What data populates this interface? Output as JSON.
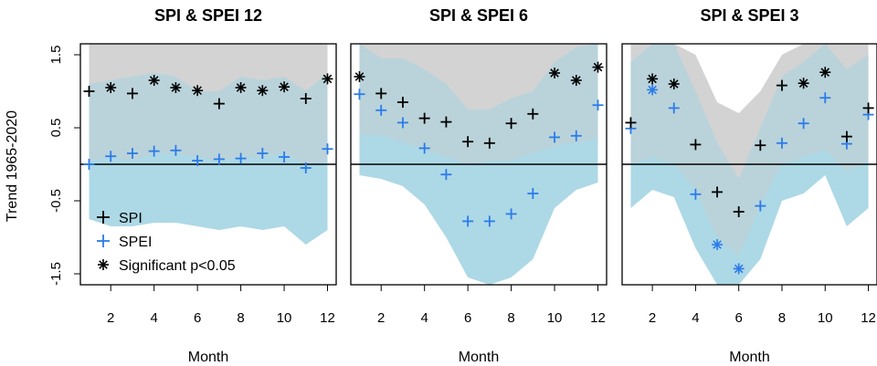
{
  "chart_data": {
    "type": "scatter",
    "ylabel": "Trend 1965-2020",
    "xlabel": "Month",
    "xlim": [
      0.6,
      12.4
    ],
    "ylim": [
      -1.65,
      1.65
    ],
    "xticks": [
      2,
      4,
      6,
      8,
      10,
      12
    ],
    "yticks": [
      1.5,
      0.5,
      -0.5,
      -1.5
    ],
    "ytick_labels": [
      "1.5",
      "0.5",
      "-0.5",
      "-1.5"
    ],
    "hline": 0,
    "legend": {
      "location": "bottom-left of first panel",
      "entries": [
        {
          "label": "SPI",
          "symbol": "+",
          "color": "#000000"
        },
        {
          "label": "SPEI",
          "symbol": "+",
          "color": "#2b7bea"
        },
        {
          "label": "Significant p<0.05",
          "symbol": "*",
          "color": "#000000"
        }
      ]
    },
    "colors": {
      "spi": "#000000",
      "spei": "#2b7bea",
      "spi_band": "#d3d3d3",
      "spei_band": "#add8e6",
      "band_overlap": "#bad3da"
    },
    "panels": [
      {
        "title": "SPI & SPEI 12",
        "months": [
          1,
          2,
          3,
          4,
          5,
          6,
          7,
          8,
          9,
          10,
          11,
          12
        ],
        "spi": [
          1.0,
          1.05,
          0.97,
          1.15,
          1.05,
          1.01,
          0.83,
          1.05,
          1.01,
          1.06,
          0.9,
          1.17
        ],
        "spi_significant": [
          false,
          true,
          false,
          true,
          true,
          true,
          false,
          true,
          true,
          true,
          false,
          true
        ],
        "spei": [
          0.0,
          0.11,
          0.15,
          0.18,
          0.19,
          0.05,
          0.07,
          0.08,
          0.15,
          0.1,
          -0.05,
          0.21
        ],
        "spei_significant": [
          false,
          false,
          false,
          false,
          false,
          false,
          false,
          false,
          false,
          false,
          false,
          false
        ],
        "spi_band_upper": [
          1.65,
          1.65,
          1.65,
          1.65,
          1.65,
          1.65,
          1.65,
          1.65,
          1.65,
          1.65,
          1.65,
          1.65
        ],
        "spi_band_lower": [
          0.05,
          0.1,
          0.05,
          0.15,
          0.15,
          0.1,
          0.05,
          0.1,
          0.1,
          0.15,
          0.0,
          0.05
        ],
        "spei_band_upper": [
          1.1,
          1.15,
          1.2,
          1.25,
          1.2,
          1.0,
          1.0,
          1.2,
          1.15,
          1.2,
          1.0,
          1.25
        ],
        "spei_band_lower": [
          -0.75,
          -0.85,
          -0.85,
          -0.8,
          -0.8,
          -0.85,
          -0.9,
          -0.85,
          -0.9,
          -0.85,
          -1.1,
          -0.9
        ]
      },
      {
        "title": "SPI & SPEI 6",
        "months": [
          1,
          2,
          3,
          4,
          5,
          6,
          7,
          8,
          9,
          10,
          11,
          12
        ],
        "spi": [
          1.2,
          0.97,
          0.85,
          0.63,
          0.58,
          0.31,
          0.29,
          0.56,
          0.69,
          1.25,
          1.15,
          1.33
        ],
        "spi_significant": [
          true,
          false,
          false,
          false,
          false,
          false,
          false,
          false,
          false,
          true,
          true,
          true
        ],
        "spei": [
          0.96,
          0.74,
          0.57,
          0.22,
          -0.14,
          -0.78,
          -0.78,
          -0.68,
          -0.4,
          0.37,
          0.39,
          0.81
        ],
        "spei_significant": [
          false,
          false,
          false,
          false,
          false,
          false,
          false,
          false,
          false,
          false,
          false,
          false
        ],
        "spi_band_upper": [
          1.65,
          1.65,
          1.65,
          1.65,
          1.65,
          1.65,
          1.65,
          1.65,
          1.65,
          1.65,
          1.65,
          1.65
        ],
        "spi_band_lower": [
          0.4,
          0.4,
          0.3,
          0.2,
          0.1,
          0.0,
          0.05,
          0.05,
          0.15,
          0.25,
          0.3,
          0.35
        ],
        "spei_band_upper": [
          1.65,
          1.45,
          1.45,
          1.3,
          1.1,
          0.75,
          0.75,
          0.9,
          1.0,
          1.4,
          1.6,
          1.65
        ],
        "spei_band_lower": [
          -0.15,
          -0.2,
          -0.3,
          -0.55,
          -1.0,
          -1.55,
          -1.65,
          -1.55,
          -1.3,
          -0.6,
          -0.35,
          -0.25
        ]
      },
      {
        "title": "SPI & SPEI 3",
        "months": [
          1,
          2,
          3,
          4,
          5,
          6,
          7,
          8,
          9,
          10,
          11,
          12
        ],
        "spi": [
          0.57,
          1.17,
          1.1,
          0.27,
          -0.38,
          -0.65,
          0.26,
          1.08,
          1.11,
          1.26,
          0.38,
          0.77
        ],
        "spi_significant": [
          false,
          true,
          true,
          false,
          false,
          false,
          false,
          false,
          true,
          true,
          false,
          false
        ],
        "spei": [
          0.49,
          1.02,
          0.77,
          -0.41,
          -1.1,
          -1.43,
          -0.57,
          0.29,
          0.56,
          0.91,
          0.28,
          0.68
        ],
        "spei_significant": [
          false,
          true,
          false,
          false,
          true,
          true,
          false,
          false,
          false,
          false,
          false,
          false
        ],
        "spi_band_upper": [
          1.65,
          1.65,
          1.65,
          1.5,
          0.85,
          0.7,
          1.0,
          1.5,
          1.65,
          1.65,
          1.65,
          1.65
        ],
        "spi_band_lower": [
          0.0,
          0.1,
          0.0,
          -0.35,
          -1.0,
          -1.25,
          -0.55,
          0.0,
          0.1,
          0.2,
          -0.1,
          0.05
        ],
        "spei_band_upper": [
          1.4,
          1.65,
          1.65,
          1.0,
          0.3,
          -0.2,
          0.5,
          1.2,
          1.4,
          1.65,
          1.3,
          1.5
        ],
        "spei_band_lower": [
          -0.6,
          -0.35,
          -0.45,
          -1.15,
          -1.65,
          -1.65,
          -1.3,
          -0.5,
          -0.4,
          -0.15,
          -0.85,
          -0.6
        ]
      }
    ]
  }
}
